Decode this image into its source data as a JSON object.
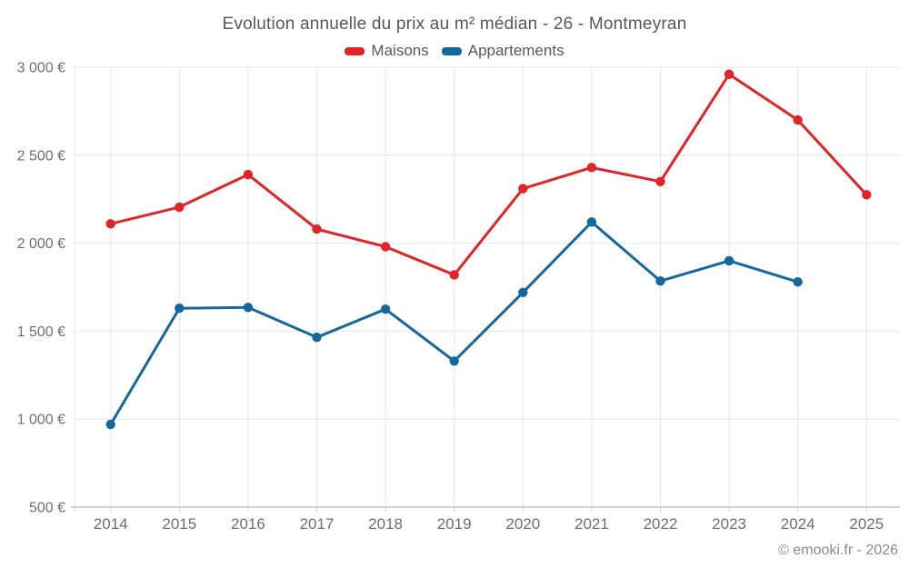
{
  "title": "Evolution annuelle du prix au m² médian - 26 - Montmeyran",
  "footer": "© emooki.fr - 2026",
  "colors": {
    "maisons": "#e02428",
    "appartements": "#15689d",
    "grid": "#e6e6e6",
    "axis_line": "#a6a6a6",
    "tick": "#d0d0d0",
    "axis_label": "#6f6f6f",
    "title_text": "#58585a"
  },
  "chart_data": {
    "type": "line",
    "title": "Evolution annuelle du prix au m² médian - 26 - Montmeyran",
    "categories": [
      "2014",
      "2015",
      "2016",
      "2017",
      "2018",
      "2019",
      "2020",
      "2021",
      "2022",
      "2023",
      "2024",
      "2025"
    ],
    "series": [
      {
        "name": "Maisons",
        "color": "#e02428",
        "values": [
          2110,
          2205,
          2390,
          2080,
          1980,
          1820,
          2310,
          2430,
          2350,
          2960,
          2700,
          2275
        ]
      },
      {
        "name": "Appartements",
        "color": "#15689d",
        "values": [
          970,
          1630,
          1635,
          1465,
          1625,
          1330,
          1720,
          2120,
          1785,
          1900,
          1780,
          null
        ]
      }
    ],
    "ylim": [
      500,
      3000
    ],
    "yticks": [
      {
        "value": 500,
        "label": "500 €"
      },
      {
        "value": 1000,
        "label": "1 000 €"
      },
      {
        "value": 1500,
        "label": "1 500 €"
      },
      {
        "value": 2000,
        "label": "2 000 €"
      },
      {
        "value": 2500,
        "label": "2 500 €"
      },
      {
        "value": 3000,
        "label": "3 000 €"
      }
    ],
    "unit": "€",
    "grid": true,
    "legend_position": "top"
  }
}
